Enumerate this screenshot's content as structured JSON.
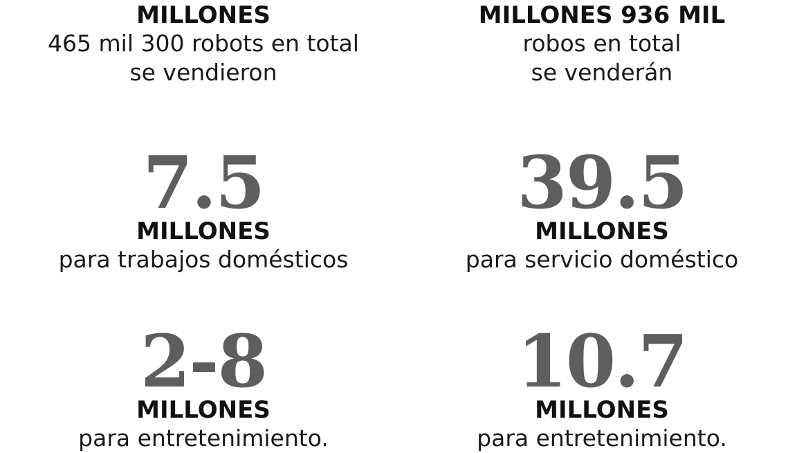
{
  "left": {
    "top": {
      "unit": "MILLONES",
      "line1": "465 mil 300 robots en total",
      "line2": "se vendieron"
    },
    "middle": {
      "number": "7.5",
      "unit": "MILLONES",
      "desc": "para trabajos domésticos"
    },
    "bottom": {
      "number": "2-8",
      "unit": "MILLONES",
      "desc": "para entretenimiento."
    }
  },
  "right": {
    "top": {
      "unit": "MILLONES 936 MIL",
      "line1": "robos en total",
      "line2": "se venderán"
    },
    "middle": {
      "number": "39.5",
      "unit": "MILLONES",
      "desc": "para servicio doméstico"
    },
    "bottom": {
      "number": "10.7",
      "unit": "MILLONES",
      "desc": "para entretenimiento."
    }
  },
  "colors": {
    "number_gray": "#5e5e5e",
    "text_dark": "#111111",
    "background": "#ffffff"
  }
}
